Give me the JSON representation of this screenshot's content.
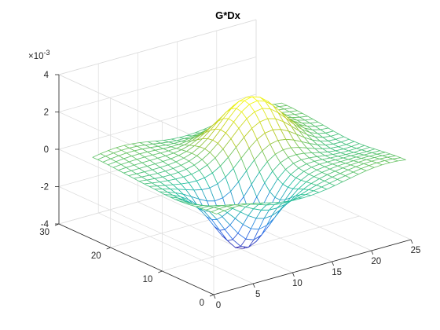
{
  "chart_data": {
    "type": "mesh",
    "title": "G*Dx",
    "z_exponent_label": "×10",
    "z_exponent_power": "-3",
    "x": {
      "min": 0,
      "max": 25,
      "ticks": [
        0,
        5,
        10,
        15,
        20,
        25
      ]
    },
    "y": {
      "min": 0,
      "max": 30,
      "ticks": [
        0,
        10,
        20,
        30
      ]
    },
    "z": {
      "min": -0.004,
      "max": 0.004,
      "ticks": [
        -4,
        -2,
        0,
        2,
        4
      ],
      "tick_scale": 0.001
    },
    "grid": true,
    "colormap": "parula",
    "surface": {
      "x_range": [
        1,
        25
      ],
      "y_range": [
        1,
        25
      ],
      "samples": 25,
      "model": "derivative-of-gaussian along x",
      "peak_value": 0.0025,
      "trough_value": -0.0036,
      "peak_location": [
        16,
        17
      ],
      "trough_location": [
        9,
        8
      ]
    },
    "colors": {
      "low": "#3e26a8",
      "mid": "#21bfa0",
      "high": "#f9fb15"
    }
  }
}
